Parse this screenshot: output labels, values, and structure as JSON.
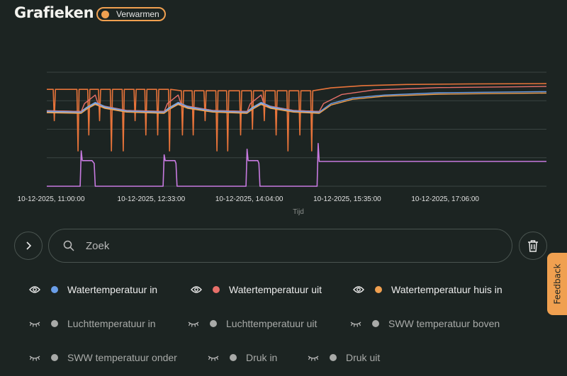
{
  "header": {
    "title": "Grafieken",
    "badge": {
      "label": "Verwarmen",
      "color": "#f0a050"
    }
  },
  "chart_data": {
    "type": "line",
    "xlabel": "Tijd",
    "ylabel": "",
    "x_ticks": [
      "10-12-2025, 11:00:00",
      "10-12-2025, 12:33:00",
      "10-12-2025, 14:04:00",
      "10-12-2025, 15:35:00",
      "10-12-2025, 17:06:00"
    ],
    "x_tick_times": [
      "11:00",
      "12:33",
      "14:04",
      "15:35",
      "17:06"
    ],
    "xlim": [
      "10:56",
      "18:40"
    ],
    "ylim": [
      0,
      40
    ],
    "y_gridlines": [
      0,
      10,
      20,
      30,
      40
    ],
    "y_tick_labels_shown": false,
    "grid": true,
    "series": [
      {
        "color": "#e8743a",
        "width": 1.6,
        "points": [
          [
            "10:56",
            34
          ],
          [
            "11:02",
            34
          ],
          [
            "11:03",
            23
          ],
          [
            "11:04",
            34
          ],
          [
            "11:24",
            34
          ],
          [
            "11:25",
            12.4
          ],
          [
            "11:26",
            34
          ],
          [
            "11:34",
            34
          ],
          [
            "11:35",
            18
          ],
          [
            "11:36",
            34
          ],
          [
            "11:44",
            34
          ],
          [
            "11:45",
            23
          ],
          [
            "11:46",
            34
          ],
          [
            "11:55",
            34
          ],
          [
            "11:56",
            12.4
          ],
          [
            "11:57",
            34
          ],
          [
            "12:06",
            34
          ],
          [
            "12:07",
            12.4
          ],
          [
            "12:08",
            34
          ],
          [
            "12:17",
            34
          ],
          [
            "12:18",
            23
          ],
          [
            "12:19",
            34
          ],
          [
            "12:27",
            34
          ],
          [
            "12:28",
            18
          ],
          [
            "12:29",
            34
          ],
          [
            "12:38",
            34
          ],
          [
            "12:39",
            18
          ],
          [
            "12:40",
            34
          ],
          [
            "12:49",
            34
          ],
          [
            "12:50",
            12.4
          ],
          [
            "12:51",
            34
          ],
          [
            "13:01",
            33.5
          ],
          [
            "13:02",
            18
          ],
          [
            "13:03",
            33.5
          ],
          [
            "13:11",
            33.5
          ],
          [
            "13:12",
            18
          ],
          [
            "13:13",
            33.5
          ],
          [
            "13:22",
            33.5
          ],
          [
            "13:23",
            23
          ],
          [
            "13:24",
            33.5
          ],
          [
            "13:33",
            33.5
          ],
          [
            "13:34",
            12.4
          ],
          [
            "13:35",
            33.5
          ],
          [
            "13:43",
            33.5
          ],
          [
            "13:44",
            12.4
          ],
          [
            "13:45",
            33.5
          ],
          [
            "13:55",
            33.5
          ],
          [
            "13:56",
            18
          ],
          [
            "13:57",
            33.5
          ],
          [
            "14:06",
            33.5
          ],
          [
            "14:07",
            20
          ],
          [
            "14:08",
            33.5
          ],
          [
            "14:17",
            33.5
          ],
          [
            "14:18",
            23
          ],
          [
            "14:19",
            33.5
          ],
          [
            "14:28",
            33.5
          ],
          [
            "14:29",
            18
          ],
          [
            "14:30",
            33.5
          ],
          [
            "14:39",
            33.5
          ],
          [
            "14:40",
            12.4
          ],
          [
            "14:41",
            33.5
          ],
          [
            "14:50",
            33.5
          ],
          [
            "14:51",
            18
          ],
          [
            "14:52",
            33.5
          ],
          [
            "15:01",
            33.5
          ],
          [
            "15:02",
            12.4
          ],
          [
            "15:03",
            33.5
          ],
          [
            "15:20",
            34.5
          ],
          [
            "15:50",
            35.3
          ],
          [
            "16:30",
            35.7
          ],
          [
            "17:30",
            35.9
          ],
          [
            "18:40",
            36
          ]
        ]
      },
      {
        "color": "#b5b8bc",
        "width": 3,
        "points": [
          [
            "10:56",
            26.3
          ],
          [
            "11:28",
            26
          ],
          [
            "11:33",
            27.4
          ],
          [
            "11:41",
            29.2
          ],
          [
            "11:50",
            27.8
          ],
          [
            "12:10",
            26.4
          ],
          [
            "12:45",
            26
          ],
          [
            "12:50",
            27.4
          ],
          [
            "12:58",
            29.2
          ],
          [
            "13:07",
            27.8
          ],
          [
            "13:30",
            26.4
          ],
          [
            "14:02",
            26
          ],
          [
            "14:07",
            27.4
          ],
          [
            "14:15",
            29.2
          ],
          [
            "14:24",
            27.8
          ],
          [
            "14:45",
            26.4
          ],
          [
            "15:09",
            26
          ]
        ]
      },
      {
        "name": "Watertemperatuur uit",
        "color": "#e8706a",
        "width": 1.4,
        "points": [
          [
            "10:56",
            26.5
          ],
          [
            "11:28",
            26.2
          ],
          [
            "11:31",
            29
          ],
          [
            "11:41",
            32
          ],
          [
            "11:44",
            28.5
          ],
          [
            "12:10",
            26.6
          ],
          [
            "12:45",
            26.2
          ],
          [
            "12:48",
            29
          ],
          [
            "12:58",
            32
          ],
          [
            "13:01",
            28.5
          ],
          [
            "13:30",
            26.6
          ],
          [
            "14:02",
            26.2
          ],
          [
            "14:05",
            29
          ],
          [
            "14:15",
            32
          ],
          [
            "14:18",
            28.5
          ],
          [
            "14:45",
            26.6
          ],
          [
            "15:09",
            26.2
          ],
          [
            "15:13",
            29
          ],
          [
            "15:30",
            32.2
          ],
          [
            "16:00",
            33.8
          ],
          [
            "17:00",
            34.6
          ],
          [
            "18:40",
            35
          ]
        ]
      },
      {
        "name": "Watertemperatuur huis in",
        "color": "#f0a050",
        "width": 1.4,
        "points": [
          [
            "10:56",
            25.8
          ],
          [
            "11:28",
            25.6
          ],
          [
            "11:33",
            27
          ],
          [
            "11:41",
            28.7
          ],
          [
            "11:50",
            27.3
          ],
          [
            "12:10",
            26
          ],
          [
            "12:45",
            25.6
          ],
          [
            "12:50",
            27
          ],
          [
            "12:58",
            28.7
          ],
          [
            "13:07",
            27.3
          ],
          [
            "13:30",
            26
          ],
          [
            "14:02",
            25.6
          ],
          [
            "14:07",
            27
          ],
          [
            "14:15",
            28.7
          ],
          [
            "14:24",
            27.3
          ],
          [
            "14:45",
            26
          ],
          [
            "15:09",
            25.6
          ],
          [
            "15:20",
            28.5
          ],
          [
            "15:40",
            30.5
          ],
          [
            "16:10",
            31.6
          ],
          [
            "17:00",
            32.3
          ],
          [
            "18:40",
            32.7
          ]
        ]
      },
      {
        "name": "Watertemperatuur in",
        "color": "#6a9ee8",
        "width": 1.4,
        "points": [
          [
            "10:56",
            26.3
          ],
          [
            "11:28",
            26
          ],
          [
            "11:33",
            27.4
          ],
          [
            "11:41",
            29.4
          ],
          [
            "11:50",
            27.9
          ],
          [
            "12:10",
            26.4
          ],
          [
            "12:45",
            26
          ],
          [
            "12:50",
            27.4
          ],
          [
            "12:58",
            29.4
          ],
          [
            "13:07",
            27.9
          ],
          [
            "13:30",
            26.4
          ],
          [
            "14:02",
            26
          ],
          [
            "14:07",
            27.4
          ],
          [
            "14:15",
            29.4
          ],
          [
            "14:24",
            27.9
          ],
          [
            "14:45",
            26.4
          ],
          [
            "15:09",
            26
          ],
          [
            "15:20",
            29
          ],
          [
            "15:40",
            31
          ],
          [
            "16:10",
            32
          ],
          [
            "17:00",
            32.8
          ],
          [
            "18:40",
            33.2
          ]
        ]
      },
      {
        "color": "#c77ae0",
        "width": 1.6,
        "points": [
          [
            "10:56",
            0
          ],
          [
            "11:27",
            0
          ],
          [
            "11:28",
            12.4
          ],
          [
            "11:29",
            9
          ],
          [
            "11:38",
            9
          ],
          [
            "11:40",
            8
          ],
          [
            "11:41",
            0
          ],
          [
            "12:44",
            0
          ],
          [
            "12:45",
            11
          ],
          [
            "12:46",
            9
          ],
          [
            "12:55",
            9
          ],
          [
            "12:56",
            8
          ],
          [
            "12:57",
            0
          ],
          [
            "14:01",
            0
          ],
          [
            "14:02",
            13
          ],
          [
            "14:03",
            9
          ],
          [
            "14:12",
            9
          ],
          [
            "14:13",
            8
          ],
          [
            "14:14",
            0
          ],
          [
            "15:07",
            0
          ],
          [
            "15:08",
            15
          ],
          [
            "15:09",
            8.7
          ],
          [
            "18:40",
            8.7
          ]
        ]
      }
    ]
  },
  "controls": {
    "expand_icon": "chevron-right-icon",
    "search_placeholder": "Zoek",
    "search_value": "",
    "delete_icon": "trash-icon"
  },
  "legend": [
    {
      "label": "Watertemperatuur in",
      "color": "#6a9ee8",
      "visible": true,
      "icon": "eye-icon"
    },
    {
      "label": "Watertemperatuur uit",
      "color": "#e8706a",
      "visible": true,
      "icon": "eye-icon"
    },
    {
      "label": "Watertemperatuur huis in",
      "color": "#f0a050",
      "visible": true,
      "icon": "eye-icon"
    },
    {
      "label": "Luchttemperatuur in",
      "color": "#a8aaa8",
      "visible": false,
      "icon": "eye-closed-icon"
    },
    {
      "label": "Luchttemperatuur uit",
      "color": "#a8aaa8",
      "visible": false,
      "icon": "eye-closed-icon"
    },
    {
      "label": "SWW temperatuur boven",
      "color": "#a8aaa8",
      "visible": false,
      "icon": "eye-closed-icon"
    },
    {
      "label": "SWW temperatuur onder",
      "color": "#a8aaa8",
      "visible": false,
      "icon": "eye-closed-icon"
    },
    {
      "label": "Druk in",
      "color": "#a8aaa8",
      "visible": false,
      "icon": "eye-closed-icon"
    },
    {
      "label": "Druk uit",
      "color": "#a8aaa8",
      "visible": false,
      "icon": "eye-closed-icon"
    }
  ],
  "feedback": {
    "label": "Feedback",
    "color": "#f0a050"
  }
}
